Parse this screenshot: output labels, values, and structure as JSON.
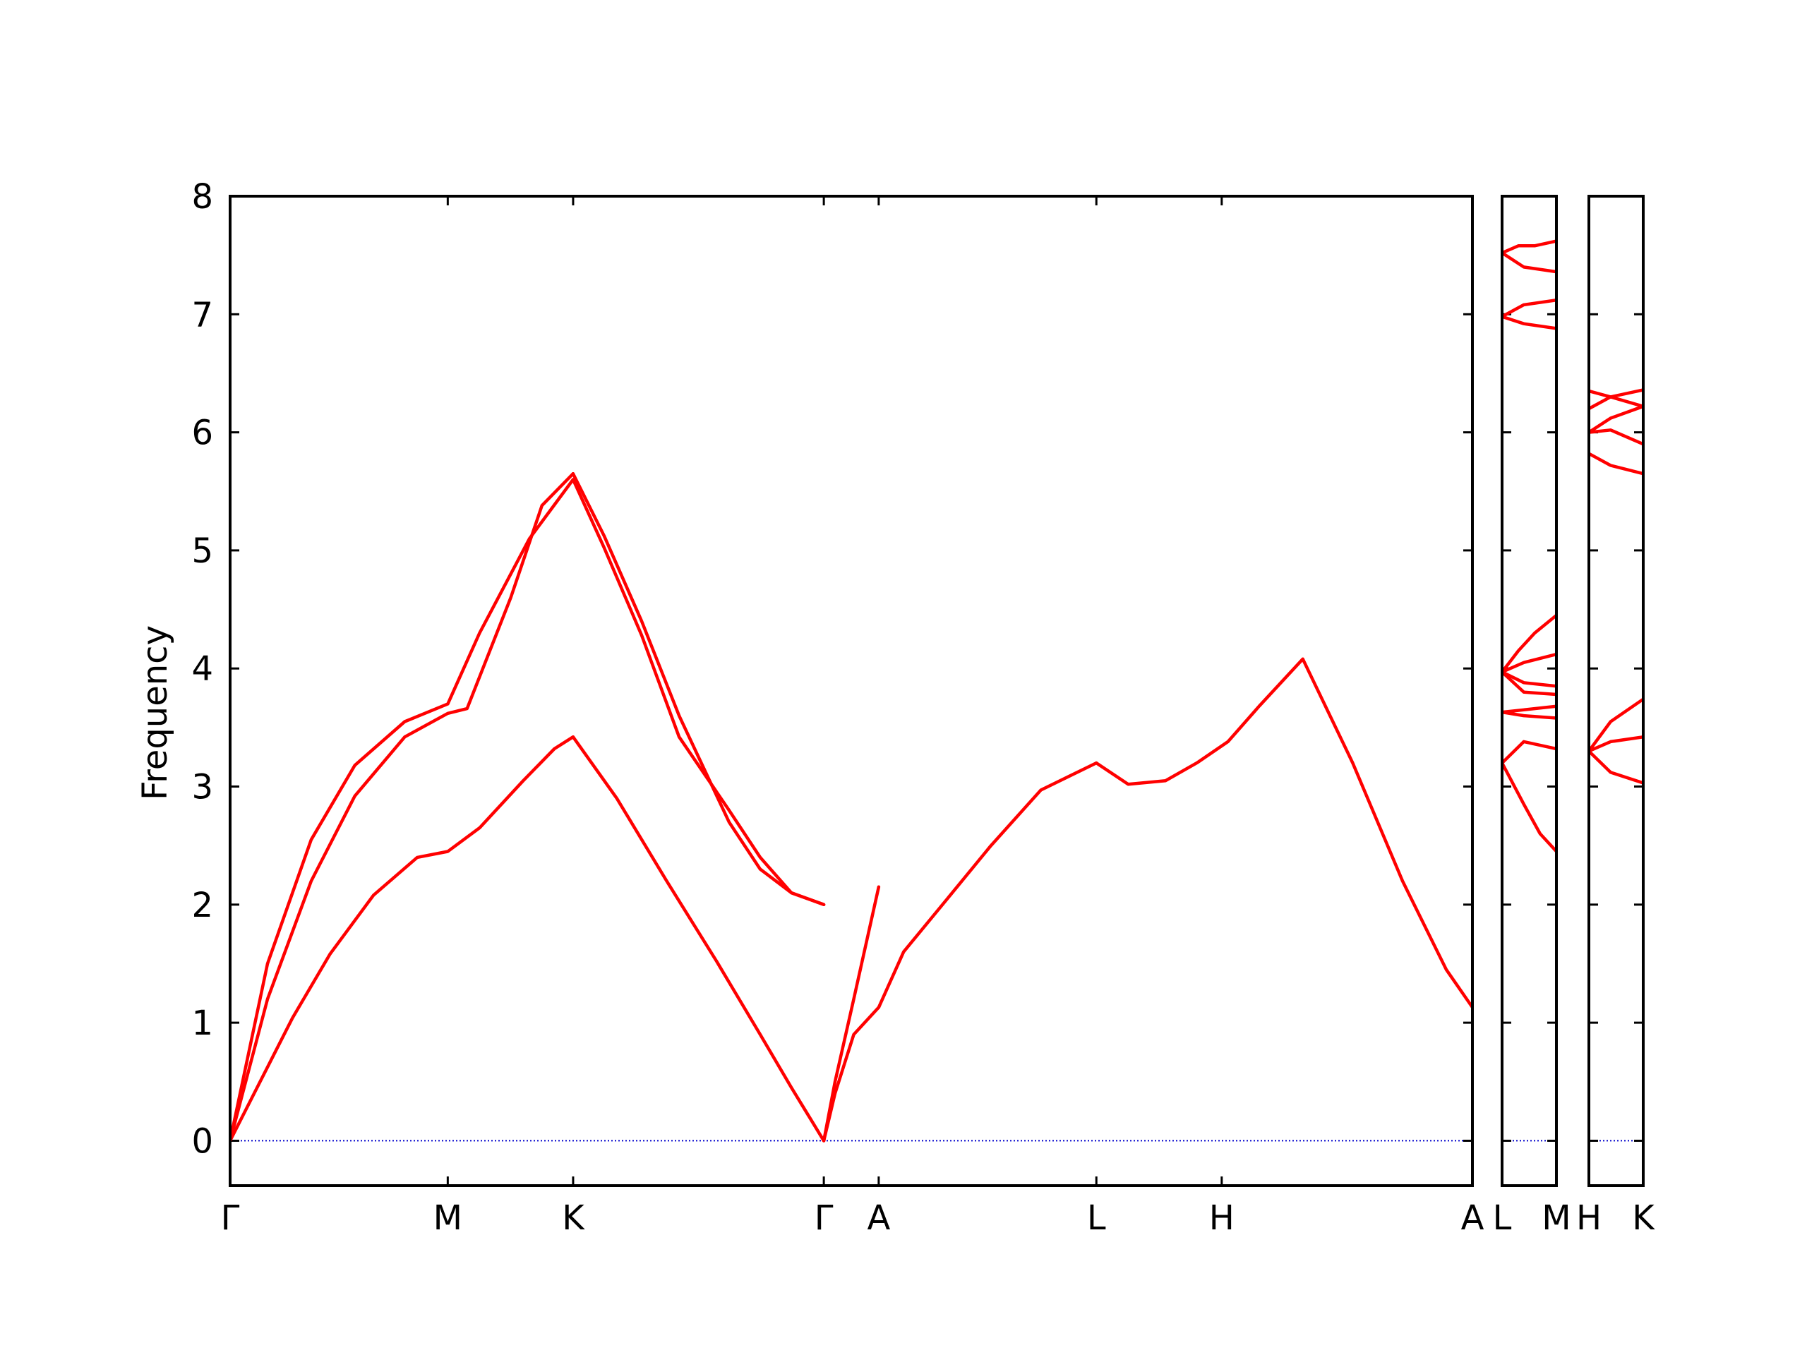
{
  "chart_data": {
    "type": "line",
    "title": "",
    "ylabel": "Frequency",
    "xlabel": "",
    "ylim": [
      -0.38,
      8
    ],
    "yticks": [
      0,
      1,
      2,
      3,
      4,
      5,
      6,
      7,
      8
    ],
    "grid": false,
    "line_color": "#ff0000",
    "zero_line_color": "#0000cc",
    "panels": [
      {
        "ticks": [
          {
            "label": "Γ",
            "x": 0.0
          },
          {
            "label": "M",
            "x": 0.349
          },
          {
            "label": "K",
            "x": 0.55
          },
          {
            "label": "Γ",
            "x": 0.952
          },
          {
            "label": "A",
            "x": 1.04
          },
          {
            "label": "L",
            "x": 1.389
          },
          {
            "label": "H",
            "x": 1.59
          },
          {
            "label": "A",
            "x": 1.992
          }
        ],
        "series": [
          {
            "x": [
              0.0,
              0.05,
              0.1,
              0.16,
              0.23,
              0.3,
              0.349,
              0.4,
              0.47,
              0.52,
              0.55
            ],
            "y": [
              0.0,
              0.52,
              1.04,
              1.58,
              2.08,
              2.4,
              2.45,
              2.65,
              3.05,
              3.32,
              3.42
            ]
          },
          {
            "x": [
              0.55,
              0.62,
              0.7,
              0.78,
              0.85,
              0.9,
              0.952
            ],
            "y": [
              3.42,
              2.9,
              2.2,
              1.52,
              0.9,
              0.45,
              0.0
            ]
          },
          {
            "x": [
              0.0,
              0.06,
              0.13,
              0.2,
              0.28,
              0.349,
              0.38,
              0.45,
              0.5,
              0.55
            ],
            "y": [
              0.0,
              1.2,
              2.2,
              2.92,
              3.42,
              3.62,
              3.66,
              4.6,
              5.38,
              5.65
            ]
          },
          {
            "x": [
              0.0,
              0.06,
              0.13,
              0.2,
              0.28,
              0.349,
              0.4,
              0.48,
              0.55
            ],
            "y": [
              0.0,
              1.5,
              2.55,
              3.18,
              3.55,
              3.7,
              4.3,
              5.1,
              5.6
            ]
          },
          {
            "x": [
              0.55,
              0.6,
              0.66,
              0.72,
              0.8,
              0.85,
              0.9,
              0.952
            ],
            "y": [
              5.65,
              5.12,
              4.4,
              3.6,
              2.7,
              2.3,
              2.1,
              2.0
            ]
          },
          {
            "x": [
              0.55,
              0.6,
              0.66,
              0.72,
              0.8,
              0.85,
              0.9,
              0.952
            ],
            "y": [
              5.6,
              5.02,
              4.28,
              3.42,
              2.8,
              2.4,
              2.1,
              2.0
            ]
          },
          {
            "x": [
              0.952,
              0.97,
              1.0,
              1.04
            ],
            "y": [
              0.0,
              0.5,
              1.2,
              2.15
            ]
          },
          {
            "x": [
              0.952,
              0.97,
              1.0,
              1.04
            ],
            "y": [
              0.0,
              0.4,
              0.9,
              1.13
            ]
          },
          {
            "x": [
              1.04,
              1.08,
              1.15,
              1.22,
              1.3,
              1.389
            ],
            "y": [
              1.13,
              1.6,
              2.05,
              2.5,
              2.97,
              3.2
            ]
          },
          {
            "x": [
              1.389,
              1.44,
              1.5,
              1.55,
              1.6,
              1.65,
              1.72,
              1.8,
              1.88,
              1.95,
              1.992
            ],
            "y": [
              3.2,
              3.02,
              3.05,
              3.2,
              3.38,
              3.68,
              4.08,
              3.2,
              2.2,
              1.45,
              1.13
            ]
          }
        ]
      },
      {
        "ticks": [
          {
            "label": "L",
            "x": 0.0
          },
          {
            "label": "M",
            "x": 1.0
          }
        ],
        "series": [
          {
            "x": [
              0.0,
              0.3,
              0.6,
              1.0
            ],
            "y": [
              7.52,
              7.58,
              7.58,
              7.62
            ]
          },
          {
            "x": [
              0.0,
              0.4,
              1.0
            ],
            "y": [
              7.52,
              7.4,
              7.36
            ]
          },
          {
            "x": [
              0.0,
              0.4,
              1.0
            ],
            "y": [
              6.98,
              7.08,
              7.12
            ]
          },
          {
            "x": [
              0.0,
              0.4,
              1.0
            ],
            "y": [
              6.98,
              6.92,
              6.88
            ]
          },
          {
            "x": [
              0.0,
              0.3,
              0.6,
              1.0
            ],
            "y": [
              3.97,
              4.15,
              4.3,
              4.45
            ]
          },
          {
            "x": [
              0.0,
              0.4,
              1.0
            ],
            "y": [
              3.97,
              4.05,
              4.12
            ]
          },
          {
            "x": [
              0.0,
              0.4,
              1.0
            ],
            "y": [
              3.97,
              3.88,
              3.85
            ]
          },
          {
            "x": [
              0.0,
              0.4,
              1.0
            ],
            "y": [
              3.97,
              3.8,
              3.78
            ]
          },
          {
            "x": [
              0.0,
              0.4,
              1.0
            ],
            "y": [
              3.63,
              3.65,
              3.68
            ]
          },
          {
            "x": [
              0.0,
              0.4,
              1.0
            ],
            "y": [
              3.63,
              3.6,
              3.58
            ]
          },
          {
            "x": [
              0.0,
              0.4,
              1.0
            ],
            "y": [
              3.2,
              3.38,
              3.32
            ]
          },
          {
            "x": [
              0.0,
              0.4,
              0.7,
              1.0
            ],
            "y": [
              3.2,
              2.85,
              2.6,
              2.45
            ]
          }
        ]
      },
      {
        "ticks": [
          {
            "label": "H",
            "x": 0.0
          },
          {
            "label": "K",
            "x": 1.0
          }
        ],
        "series": [
          {
            "x": [
              0.0,
              0.4,
              1.0
            ],
            "y": [
              6.35,
              6.3,
              6.22
            ]
          },
          {
            "x": [
              0.0,
              0.4,
              1.0
            ],
            "y": [
              6.2,
              6.3,
              6.36
            ]
          },
          {
            "x": [
              0.0,
              0.4,
              1.0
            ],
            "y": [
              6.0,
              6.12,
              6.22
            ]
          },
          {
            "x": [
              0.0,
              0.4,
              1.0
            ],
            "y": [
              6.0,
              6.02,
              5.9
            ]
          },
          {
            "x": [
              0.0,
              0.4,
              1.0
            ],
            "y": [
              5.82,
              5.72,
              5.65
            ]
          },
          {
            "x": [
              0.0,
              0.4,
              1.0
            ],
            "y": [
              3.3,
              3.55,
              3.74
            ]
          },
          {
            "x": [
              0.0,
              0.4,
              1.0
            ],
            "y": [
              3.3,
              3.38,
              3.42
            ]
          },
          {
            "x": [
              0.0,
              0.4,
              1.0
            ],
            "y": [
              3.3,
              3.12,
              3.03
            ]
          }
        ]
      }
    ]
  }
}
